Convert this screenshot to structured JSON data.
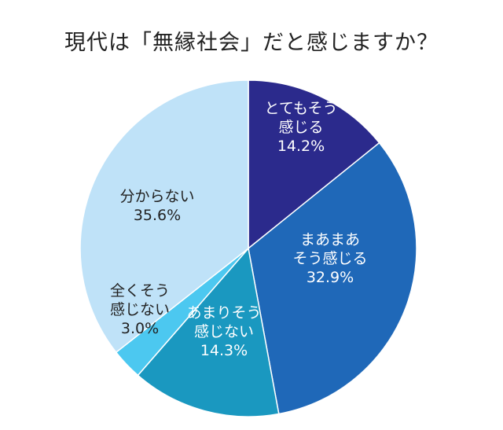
{
  "chart_data": {
    "type": "pie",
    "title": "現代は「無縁社会」だと感じますか？",
    "slices": [
      {
        "label_lines": [
          "とてもそう",
          "感じる"
        ],
        "value": 14.2,
        "value_label": "14.2%",
        "color": "#2b2a8c",
        "text_color": "#ffffff"
      },
      {
        "label_lines": [
          "まあまあ",
          "そう感じる"
        ],
        "value": 32.9,
        "value_label": "32.9%",
        "color": "#1f68b8",
        "text_color": "#ffffff"
      },
      {
        "label_lines": [
          "あまりそう",
          "感じない"
        ],
        "value": 14.3,
        "value_label": "14.3%",
        "color": "#1a98c0",
        "text_color": "#ffffff"
      },
      {
        "label_lines": [
          "全くそう",
          "感じない"
        ],
        "value": 3.0,
        "value_label": "3.0%",
        "color": "#4cc8f0",
        "text_color": "#222222"
      },
      {
        "label_lines": [
          "分からない"
        ],
        "value": 35.6,
        "value_label": "35.6%",
        "color": "#bfe2f8",
        "text_color": "#222222"
      }
    ]
  }
}
